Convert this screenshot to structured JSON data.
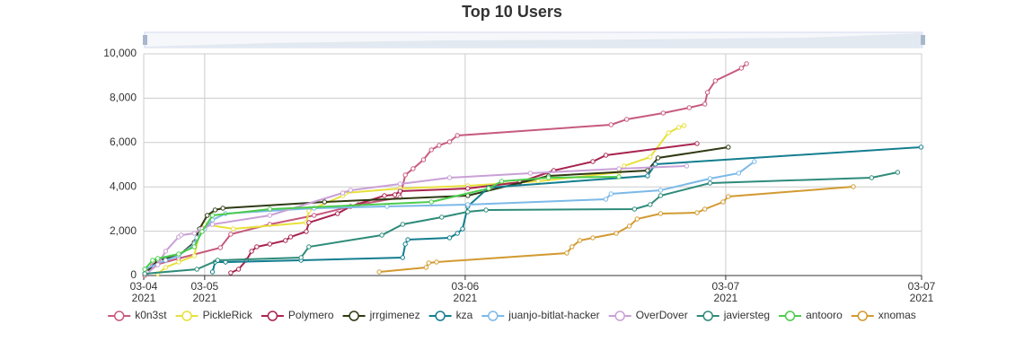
{
  "chart_data": {
    "type": "line",
    "title": "Top 10 Users",
    "xlim": [
      4.766,
      7.752
    ],
    "xticks": [
      {
        "value": 4.766,
        "label": "03-04\n2021"
      },
      {
        "value": 5,
        "label": "03-05\n2021"
      },
      {
        "value": 6,
        "label": "03-06\n2021"
      },
      {
        "value": 7,
        "label": "03-07\n2021"
      },
      {
        "value": 7.752,
        "label": "03-07\n2021"
      }
    ],
    "ylim": [
      0,
      10000
    ],
    "yticks": [
      0,
      {
        "value": 2000,
        "label": "2,000"
      },
      {
        "value": 4000,
        "label": "4,000"
      },
      {
        "value": 6000,
        "label": "6,000"
      },
      {
        "value": 8000,
        "label": "8,000"
      },
      {
        "value": 10000,
        "label": "10,000"
      }
    ],
    "grid": true,
    "legend": "bottom",
    "series": [
      {
        "name": "k0n3st",
        "color": "#c75a7d",
        "x": [
          4.77,
          4.8,
          4.9,
          5.06,
          5.1,
          5.25,
          5.42,
          5.59,
          5.75,
          5.77,
          5.8,
          5.84,
          5.87,
          5.9,
          5.94,
          5.97,
          6.56,
          6.62,
          6.76,
          6.86,
          6.92,
          6.93,
          6.96,
          7.06,
          7.08
        ],
        "values": [
          0,
          445,
          769,
          1255,
          1862,
          2308,
          2713,
          3199,
          3523,
          4535,
          4818,
          5223,
          5669,
          5871,
          6033,
          6316,
          6802,
          7045,
          7329,
          7572,
          7734,
          8260,
          8786,
          9353,
          9556
        ]
      },
      {
        "name": "PickleRick",
        "color": "#e8e03a",
        "x": [
          4.82,
          4.85,
          4.9,
          4.96,
          4.98,
          5.0,
          5.11,
          5.39,
          5.4,
          5.42,
          5.53,
          5.54,
          5.75,
          6.01,
          6.28,
          6.59,
          6.61,
          6.71,
          6.78,
          6.82,
          6.84
        ],
        "values": [
          81,
          364,
          607,
          891,
          1903,
          2308,
          2105,
          2389,
          2915,
          3037,
          3604,
          3725,
          3928,
          4049,
          4251,
          4656,
          4940,
          5345,
          6438,
          6681,
          6762
        ]
      },
      {
        "name": "Polymero",
        "color": "#a8244f",
        "x": [
          5.1,
          5.13,
          5.16,
          5.18,
          5.2,
          5.25,
          5.31,
          5.33,
          5.39,
          5.4,
          5.51,
          5.56,
          5.69,
          5.73,
          5.75,
          6.01,
          6.21,
          6.34,
          6.49,
          6.54,
          6.89
        ],
        "values": [
          121,
          283,
          688,
          1093,
          1296,
          1417,
          1579,
          1741,
          1984,
          2389,
          2794,
          3118,
          3604,
          3644,
          3806,
          3928,
          4211,
          4737,
          5142,
          5426,
          5952
        ]
      },
      {
        "name": "jrrgimenez",
        "color": "#2f3a13",
        "x": [
          4.77,
          4.82,
          4.9,
          4.96,
          4.98,
          5.01,
          5.04,
          5.07,
          5.46,
          6.01,
          6.32,
          6.7,
          6.74,
          7.01
        ],
        "values": [
          81,
          688,
          891,
          1498,
          2105,
          2713,
          2956,
          3037,
          3320,
          3604,
          4494,
          4737,
          5304,
          5790
        ]
      },
      {
        "name": "kza",
        "color": "#137e8f",
        "x": [
          5.03,
          5.04,
          5.08,
          5.37,
          5.76,
          5.77,
          5.78,
          5.94,
          5.97,
          5.99,
          6.01,
          6.09,
          6.7,
          6.73,
          7.75
        ],
        "values": [
          162,
          607,
          607,
          688,
          810,
          1417,
          1620,
          1701,
          1903,
          2105,
          3118,
          3968,
          4494,
          5021,
          5790
        ]
      },
      {
        "name": "juanjo-bitlat-hacker",
        "color": "#7cb9e8",
        "x": [
          4.77,
          4.85,
          4.9,
          4.96,
          4.97,
          5.0,
          5.03,
          5.08,
          5.42,
          5.7,
          6.01,
          6.54,
          6.56,
          6.75,
          6.94,
          7.05,
          7.11
        ],
        "values": [
          283,
          688,
          891,
          1417,
          1701,
          2105,
          2510,
          2794,
          3037,
          3118,
          3199,
          3442,
          3685,
          3847,
          4373,
          4616,
          5142
        ]
      },
      {
        "name": "OverDover",
        "color": "#c9a0d6",
        "x": [
          4.78,
          4.82,
          4.85,
          4.9,
          4.91,
          4.96,
          4.99,
          5.03,
          5.25,
          5.53,
          5.56,
          5.75,
          5.94,
          6.25,
          6.59,
          6.85
        ],
        "values": [
          121,
          486,
          1093,
          1741,
          1822,
          1903,
          2105,
          2308,
          2713,
          3725,
          3847,
          4130,
          4413,
          4616,
          4818,
          4940
        ]
      },
      {
        "name": "javiersteg",
        "color": "#2e8b7a",
        "x": [
          4.77,
          4.97,
          5.05,
          5.37,
          5.4,
          5.68,
          5.76,
          5.91,
          6.01,
          6.08,
          6.65,
          6.71,
          6.75,
          6.94,
          7.56,
          7.66
        ],
        "values": [
          81,
          283,
          688,
          810,
          1296,
          1822,
          2308,
          2632,
          2875,
          2956,
          2996,
          3199,
          3604,
          4170,
          4413,
          4656
        ]
      },
      {
        "name": "antooro",
        "color": "#4ccc4c",
        "x": [
          4.77,
          4.8,
          4.82,
          4.9,
          4.96,
          4.99,
          5.03,
          5.25,
          5.87,
          6.09,
          6.14,
          6.32,
          6.59
        ],
        "values": [
          283,
          688,
          769,
          972,
          1296,
          1984,
          2713,
          2996,
          3320,
          3928,
          4251,
          4413,
          4454
        ]
      },
      {
        "name": "xnomas",
        "color": "#d29a30",
        "x": [
          5.67,
          5.85,
          5.86,
          5.89,
          6.39,
          6.41,
          6.44,
          6.49,
          6.58,
          6.63,
          6.66,
          6.75,
          6.89,
          6.92,
          6.99,
          7.01,
          7.49
        ],
        "values": [
          162,
          364,
          567,
          607,
          1012,
          1296,
          1579,
          1701,
          1903,
          2227,
          2551,
          2794,
          2834,
          2996,
          3320,
          3563,
          4008
        ]
      }
    ]
  }
}
